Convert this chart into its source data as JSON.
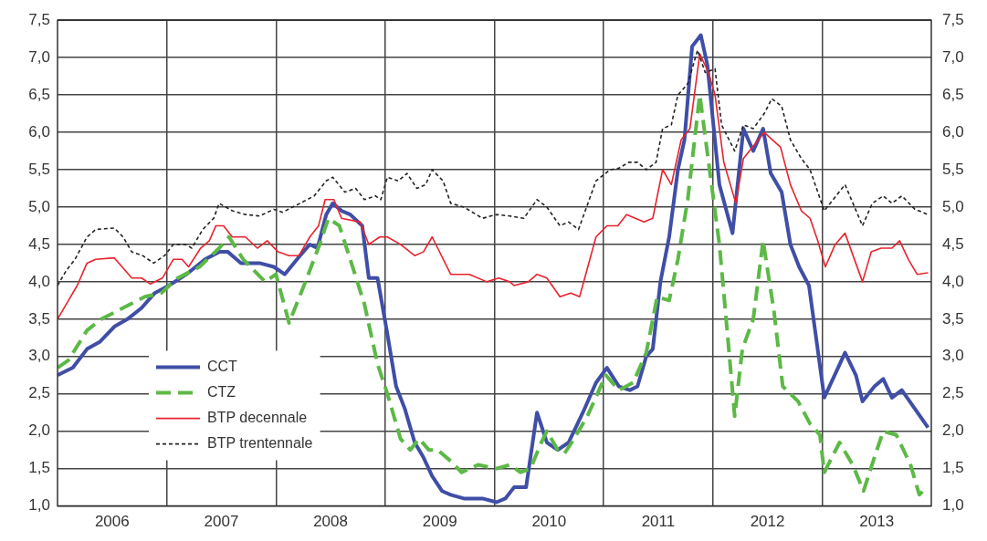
{
  "chart_data": {
    "type": "line",
    "xlim": [
      2006,
      2014
    ],
    "xticks": [
      {
        "value": 2006.5,
        "label": "2006"
      },
      {
        "value": 2007,
        "label": null
      },
      {
        "value": 2007.5,
        "label": "2007"
      },
      {
        "value": 2008,
        "label": null
      },
      {
        "value": 2008.5,
        "label": "2008"
      },
      {
        "value": 2009,
        "label": null
      },
      {
        "value": 2009.5,
        "label": "2009"
      },
      {
        "value": 2010,
        "label": null
      },
      {
        "value": 2010.5,
        "label": "2010"
      },
      {
        "value": 2011,
        "label": null
      },
      {
        "value": 2011.5,
        "label": "2011"
      },
      {
        "value": 2012,
        "label": null
      },
      {
        "value": 2012.5,
        "label": "2012"
      },
      {
        "value": 2013,
        "label": null
      },
      {
        "value": 2013.5,
        "label": "2013"
      }
    ],
    "ylim": [
      1,
      7.5
    ],
    "yticks": [
      {
        "value": 1,
        "label": "1,0"
      },
      {
        "value": 1.5,
        "label": "1,5"
      },
      {
        "value": 2,
        "label": "2,0"
      },
      {
        "value": 2.5,
        "label": "2,5"
      },
      {
        "value": 3,
        "label": "3,0"
      },
      {
        "value": 3.5,
        "label": "3,5"
      },
      {
        "value": 4,
        "label": "4,0"
      },
      {
        "value": 4.5,
        "label": "4,5"
      },
      {
        "value": 5,
        "label": "5,0"
      },
      {
        "value": 5.5,
        "label": "5,5"
      },
      {
        "value": 6,
        "label": "6,0"
      },
      {
        "value": 6.5,
        "label": "6,5"
      },
      {
        "value": 7,
        "label": "7,0"
      },
      {
        "value": 7.5,
        "label": "7,5"
      }
    ],
    "y2lim": [
      1,
      7.5
    ],
    "y2ticks": [
      {
        "value": 1,
        "label": "1,0"
      },
      {
        "value": 1.5,
        "label": "1,5"
      },
      {
        "value": 2,
        "label": "2,0"
      },
      {
        "value": 2.5,
        "label": "2,5"
      },
      {
        "value": 3,
        "label": "3,0"
      },
      {
        "value": 3.5,
        "label": "3,5"
      },
      {
        "value": 4,
        "label": "4,0"
      },
      {
        "value": 4.5,
        "label": "4,5"
      },
      {
        "value": 5,
        "label": "5,0"
      },
      {
        "value": 5.5,
        "label": "5,5"
      },
      {
        "value": 6,
        "label": "6,0"
      },
      {
        "value": 6.5,
        "label": "6,5"
      },
      {
        "value": 7,
        "label": "7,0"
      },
      {
        "value": 7.5,
        "label": "7,5"
      }
    ],
    "grid": true,
    "legend": "bottom left",
    "marker": "none",
    "series": [
      {
        "name": "CCT",
        "color": "#3f4ea6",
        "line_style": "solid",
        "x": [
          2006,
          2006.14,
          2006.27,
          2006.39,
          2006.52,
          2006.64,
          2006.77,
          2006.89,
          2007.02,
          2007.18,
          2007.35,
          2007.48,
          2007.56,
          2007.68,
          2007.85,
          2007.98,
          2008.08,
          2008.22,
          2008.31,
          2008.38,
          2008.46,
          2008.52,
          2008.6,
          2008.68,
          2008.79,
          2008.85,
          2008.93,
          2009.02,
          2009.1,
          2009.18,
          2009.27,
          2009.35,
          2009.43,
          2009.52,
          2009.6,
          2009.72,
          2009.89,
          2010.02,
          2010.1,
          2010.18,
          2010.29,
          2010.39,
          2010.48,
          2010.58,
          2010.68,
          2010.81,
          2010.93,
          2011.03,
          2011.14,
          2011.24,
          2011.31,
          2011.39,
          2011.45,
          2011.52,
          2011.6,
          2011.68,
          2011.74,
          2011.81,
          2011.89,
          2011.95,
          2012.06,
          2012.18,
          2012.28,
          2012.37,
          2012.46,
          2012.53,
          2012.63,
          2012.71,
          2012.79,
          2012.88,
          2013.02,
          2013.21,
          2013.31,
          2013.37,
          2013.48,
          2013.56,
          2013.64,
          2013.73,
          2013.85,
          2013.97
        ],
        "values": [
          2.75,
          2.85,
          3.1,
          3.2,
          3.4,
          3.5,
          3.65,
          3.85,
          3.95,
          4.1,
          4.3,
          4.4,
          4.4,
          4.25,
          4.25,
          4.2,
          4.1,
          4.35,
          4.5,
          4.45,
          4.9,
          5.05,
          4.95,
          4.9,
          4.75,
          4.05,
          4.05,
          3.3,
          2.6,
          2.3,
          1.85,
          1.65,
          1.4,
          1.2,
          1.15,
          1.1,
          1.1,
          1.05,
          1.1,
          1.25,
          1.25,
          2.25,
          1.85,
          1.75,
          1.85,
          2.25,
          2.65,
          2.85,
          2.6,
          2.55,
          2.6,
          3.0,
          3.1,
          4.0,
          4.6,
          5.5,
          5.9,
          7.15,
          7.3,
          6.9,
          5.3,
          4.65,
          6.05,
          5.75,
          6.05,
          5.45,
          5.2,
          4.5,
          4.2,
          3.95,
          2.45,
          3.05,
          2.75,
          2.4,
          2.6,
          2.7,
          2.45,
          2.55,
          2.3,
          2.05
        ]
      },
      {
        "name": "CTZ",
        "color": "#5cb946",
        "line_style": "dashed",
        "x": [
          2006,
          2006.1,
          2006.27,
          2006.4,
          2006.6,
          2006.8,
          2006.95,
          2007.1,
          2007.3,
          2007.48,
          2007.57,
          2007.7,
          2007.9,
          2008,
          2008.12,
          2008.27,
          2008.4,
          2008.48,
          2008.58,
          2008.68,
          2008.81,
          2008.93,
          2009.02,
          2009.14,
          2009.23,
          2009.31,
          2009.4,
          2009.48,
          2009.6,
          2009.7,
          2009.85,
          2010.02,
          2010.14,
          2010.24,
          2010.33,
          2010.43,
          2010.48,
          2010.58,
          2010.64,
          2010.73,
          2010.85,
          2011.02,
          2011.14,
          2011.27,
          2011.39,
          2011.49,
          2011.6,
          2011.68,
          2011.77,
          2011.88,
          2011.97,
          2012.06,
          2012.14,
          2012.2,
          2012.27,
          2012.37,
          2012.46,
          2012.56,
          2012.64,
          2012.78,
          2012.89,
          2012.98,
          2013.02,
          2013.16,
          2013.28,
          2013.38,
          2013.49,
          2013.56,
          2013.68,
          2013.81,
          2013.89,
          2013.96
        ],
        "values": [
          2.85,
          2.95,
          3.35,
          3.5,
          3.65,
          3.8,
          3.85,
          4.05,
          4.2,
          4.45,
          4.6,
          4.3,
          4.0,
          4.1,
          3.45,
          4.0,
          4.5,
          4.85,
          4.75,
          4.3,
          3.7,
          2.9,
          2.5,
          1.9,
          1.75,
          1.9,
          1.75,
          1.75,
          1.6,
          1.45,
          1.55,
          1.5,
          1.55,
          1.45,
          1.5,
          1.85,
          2.0,
          1.75,
          1.7,
          1.9,
          2.2,
          2.75,
          2.55,
          2.65,
          3.05,
          3.8,
          3.75,
          4.3,
          5.1,
          6.5,
          5.5,
          4.5,
          3.2,
          2.2,
          3.1,
          3.5,
          4.55,
          3.6,
          2.6,
          2.4,
          2.1,
          1.95,
          1.45,
          1.85,
          1.55,
          1.2,
          1.7,
          2.0,
          1.95,
          1.55,
          1.15,
          1.25
        ]
      },
      {
        "name": "BTP decennale",
        "color": "#e8232e",
        "line_style": "solid",
        "x": [
          2006,
          2006.1,
          2006.18,
          2006.27,
          2006.35,
          2006.52,
          2006.68,
          2006.77,
          2006.85,
          2006.96,
          2007.06,
          2007.14,
          2007.2,
          2007.31,
          2007.39,
          2007.45,
          2007.52,
          2007.6,
          2007.72,
          2007.83,
          2007.92,
          2008.02,
          2008.12,
          2008.21,
          2008.31,
          2008.39,
          2008.45,
          2008.53,
          2008.6,
          2008.77,
          2008.85,
          2008.95,
          2009.02,
          2009.14,
          2009.27,
          2009.35,
          2009.43,
          2009.6,
          2009.77,
          2009.93,
          2010.04,
          2010.14,
          2010.18,
          2010.31,
          2010.39,
          2010.48,
          2010.6,
          2010.7,
          2010.78,
          2010.93,
          2011.03,
          2011.13,
          2011.21,
          2011.37,
          2011.45,
          2011.54,
          2011.62,
          2011.71,
          2011.79,
          2011.88,
          2011.96,
          2012.02,
          2012.1,
          2012.21,
          2012.28,
          2012.47,
          2012.62,
          2012.71,
          2012.81,
          2012.89,
          2012.96,
          2013.03,
          2013.12,
          2013.21,
          2013.37,
          2013.45,
          2013.54,
          2013.64,
          2013.71,
          2013.79,
          2013.87,
          2013.97
        ],
        "values": [
          3.5,
          3.75,
          3.95,
          4.25,
          4.3,
          4.32,
          4.05,
          4.05,
          3.97,
          4.05,
          4.3,
          4.3,
          4.2,
          4.45,
          4.55,
          4.75,
          4.75,
          4.6,
          4.6,
          4.45,
          4.55,
          4.4,
          4.35,
          4.35,
          4.6,
          4.75,
          5.1,
          5.1,
          4.85,
          4.8,
          4.5,
          4.6,
          4.6,
          4.5,
          4.35,
          4.4,
          4.6,
          4.1,
          4.1,
          4.0,
          4.05,
          4.0,
          3.95,
          4.0,
          4.1,
          4.05,
          3.8,
          3.85,
          3.8,
          4.6,
          4.75,
          4.75,
          4.9,
          4.8,
          4.85,
          5.5,
          5.3,
          5.9,
          6.05,
          7.05,
          6.8,
          6.5,
          5.6,
          5.05,
          5.65,
          6.0,
          5.8,
          5.3,
          4.95,
          4.85,
          4.55,
          4.2,
          4.5,
          4.65,
          4.0,
          4.4,
          4.45,
          4.45,
          4.55,
          4.3,
          4.1,
          4.12
        ]
      },
      {
        "name": "BTP trentennale",
        "color": "#222222",
        "line_style": "dotted",
        "x": [
          2006,
          2006.08,
          2006.16,
          2006.27,
          2006.35,
          2006.52,
          2006.6,
          2006.68,
          2006.78,
          2006.88,
          2006.98,
          2007.06,
          2007.17,
          2007.23,
          2007.33,
          2007.43,
          2007.48,
          2007.6,
          2007.72,
          2007.85,
          2007.98,
          2008.06,
          2008.22,
          2008.35,
          2008.46,
          2008.52,
          2008.63,
          2008.73,
          2008.81,
          2008.91,
          2008.96,
          2009.02,
          2009.12,
          2009.2,
          2009.29,
          2009.37,
          2009.43,
          2009.53,
          2009.6,
          2009.72,
          2009.89,
          2010.02,
          2010.14,
          2010.27,
          2010.39,
          2010.48,
          2010.6,
          2010.68,
          2010.77,
          2010.93,
          2011.06,
          2011.14,
          2011.23,
          2011.31,
          2011.39,
          2011.48,
          2011.54,
          2011.62,
          2011.68,
          2011.77,
          2011.86,
          2011.93,
          2012.02,
          2012.08,
          2012.2,
          2012.28,
          2012.37,
          2012.47,
          2012.54,
          2012.63,
          2012.71,
          2012.81,
          2012.89,
          2013.02,
          2013.21,
          2013.37,
          2013.46,
          2013.56,
          2013.64,
          2013.73,
          2013.85,
          2013.97
        ],
        "values": [
          3.95,
          4.15,
          4.3,
          4.6,
          4.7,
          4.72,
          4.6,
          4.4,
          4.35,
          4.25,
          4.35,
          4.5,
          4.5,
          4.45,
          4.7,
          4.85,
          5.05,
          4.95,
          4.9,
          4.88,
          4.97,
          4.93,
          5.05,
          5.15,
          5.35,
          5.4,
          5.2,
          5.25,
          5.1,
          5.15,
          5.1,
          5.4,
          5.35,
          5.45,
          5.25,
          5.3,
          5.5,
          5.35,
          5.05,
          5.0,
          4.85,
          4.9,
          4.88,
          4.85,
          5.1,
          5.0,
          4.75,
          4.8,
          4.7,
          5.35,
          5.5,
          5.52,
          5.6,
          5.6,
          5.5,
          5.6,
          6.05,
          6.1,
          6.5,
          6.65,
          7.1,
          6.8,
          6.85,
          6.1,
          5.75,
          6.1,
          6.05,
          6.25,
          6.45,
          6.35,
          5.9,
          5.65,
          5.5,
          4.95,
          5.3,
          4.75,
          5.05,
          5.15,
          5.05,
          5.15,
          4.97,
          4.9
        ]
      }
    ]
  }
}
